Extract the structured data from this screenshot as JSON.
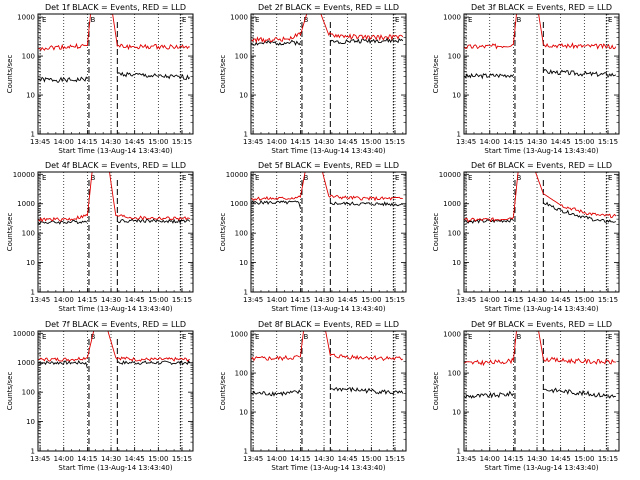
{
  "colors": {
    "events": "#000000",
    "lld": "#e00000",
    "axis": "#000000"
  },
  "chart_data": [
    {
      "type": "line",
      "title": "Det 1f BLACK = Events, RED = LLD",
      "xlabel": "Start Time (13-Aug-14 13:43:40)",
      "ylabel": "Counts/sec",
      "xlim": [
        "13:43:40",
        "15:22"
      ],
      "ylim": [
        1,
        1200
      ],
      "yscale": "log",
      "x_ticks": [
        "13:45",
        "14:00",
        "14:15",
        "14:30",
        "14:45",
        "15:00",
        "15:15"
      ],
      "y_ticks": [
        "1",
        "10",
        "100",
        "1000"
      ],
      "interval_markers": [
        "13:45",
        "14:16",
        "14:34",
        "15:14"
      ],
      "segment_labels": [
        "E",
        "B",
        "E"
      ],
      "series": [
        {
          "name": "Events",
          "color": "#000000",
          "x": [
            "13:44",
            "14:05",
            "14:15",
            "14:16",
            "14:34",
            "14:45",
            "15:00",
            "15:20"
          ],
          "y": [
            25,
            24,
            26,
            null,
            35,
            33,
            30,
            28
          ]
        },
        {
          "name": "LLD",
          "color": "#e00000",
          "x": [
            "13:44",
            "14:05",
            "14:15",
            "14:17",
            "14:19",
            "14:31",
            "14:34",
            "14:45",
            "15:00",
            "15:20"
          ],
          "y": [
            160,
            175,
            185,
            1200,
            1200,
            1200,
            180,
            170,
            175,
            170
          ]
        }
      ]
    },
    {
      "type": "line",
      "title": "Det 2f BLACK = Events, RED = LLD",
      "xlabel": "Start Time (13-Aug-14 13:43:40)",
      "ylabel": "Counts/sec",
      "xlim": [
        "13:43:40",
        "15:22"
      ],
      "ylim": [
        1,
        1200
      ],
      "yscale": "log",
      "x_ticks": [
        "13:45",
        "14:00",
        "14:15",
        "14:30",
        "14:45",
        "15:00",
        "15:15"
      ],
      "y_ticks": [
        "1",
        "10",
        "100",
        "1000"
      ],
      "interval_markers": [
        "13:45",
        "14:16",
        "14:34",
        "15:14"
      ],
      "segment_labels": [
        "E",
        "B",
        "E"
      ],
      "series": [
        {
          "name": "Events",
          "color": "#000000",
          "x": [
            "13:44",
            "14:05",
            "14:15",
            "14:16",
            "14:34",
            "14:45",
            "15:00",
            "15:20"
          ],
          "y": [
            210,
            220,
            225,
            null,
            230,
            240,
            250,
            245
          ]
        },
        {
          "name": "LLD",
          "color": "#e00000",
          "x": [
            "13:44",
            "14:05",
            "14:15",
            "14:19",
            "14:22",
            "14:28",
            "14:33",
            "14:45",
            "15:00",
            "15:20"
          ],
          "y": [
            260,
            270,
            350,
            1200,
            1200,
            1200,
            350,
            320,
            300,
            310
          ]
        }
      ]
    },
    {
      "type": "line",
      "title": "Det 3f BLACK = Events, RED = LLD",
      "xlabel": "Start Time (13-Aug-14 13:43:40)",
      "ylabel": "Counts/sec",
      "xlim": [
        "13:43:40",
        "15:22"
      ],
      "ylim": [
        1,
        1200
      ],
      "yscale": "log",
      "x_ticks": [
        "13:45",
        "14:00",
        "14:15",
        "14:30",
        "14:45",
        "15:00",
        "15:15"
      ],
      "y_ticks": [
        "1",
        "10",
        "100",
        "1000"
      ],
      "interval_markers": [
        "13:45",
        "14:16",
        "14:34",
        "15:14"
      ],
      "segment_labels": [
        "E",
        "B",
        "E"
      ],
      "series": [
        {
          "name": "Events",
          "color": "#000000",
          "x": [
            "13:44",
            "14:05",
            "14:15",
            "14:16",
            "14:34",
            "14:45",
            "15:00",
            "15:20"
          ],
          "y": [
            30,
            32,
            33,
            null,
            40,
            38,
            35,
            33
          ]
        },
        {
          "name": "LLD",
          "color": "#e00000",
          "x": [
            "13:44",
            "14:05",
            "14:15",
            "14:17",
            "14:19",
            "14:31",
            "14:34",
            "14:45",
            "15:00",
            "15:20"
          ],
          "y": [
            170,
            180,
            200,
            1200,
            1200,
            1200,
            200,
            185,
            180,
            175
          ]
        }
      ]
    },
    {
      "type": "line",
      "title": "Det 4f BLACK = Events, RED = LLD",
      "xlabel": "Start Time (13-Aug-14 13:43:40)",
      "ylabel": "Counts/sec",
      "xlim": [
        "13:43:40",
        "15:22"
      ],
      "ylim": [
        1,
        12000
      ],
      "yscale": "log",
      "x_ticks": [
        "13:45",
        "14:00",
        "14:15",
        "14:30",
        "14:45",
        "15:00",
        "15:15"
      ],
      "y_ticks": [
        "1",
        "10",
        "100",
        "1000",
        "10000"
      ],
      "interval_markers": [
        "13:45",
        "14:16",
        "14:34",
        "15:14"
      ],
      "segment_labels": [
        "E",
        "B",
        "E"
      ],
      "series": [
        {
          "name": "Events",
          "color": "#000000",
          "x": [
            "13:44",
            "14:05",
            "14:15",
            "14:16",
            "14:34",
            "14:45",
            "15:00",
            "15:20"
          ],
          "y": [
            230,
            240,
            250,
            null,
            260,
            270,
            260,
            250
          ]
        },
        {
          "name": "LLD",
          "color": "#e00000",
          "x": [
            "13:44",
            "14:05",
            "14:15",
            "14:18",
            "14:21",
            "14:29",
            "14:33",
            "14:45",
            "15:00",
            "15:20"
          ],
          "y": [
            290,
            300,
            400,
            12000,
            12000,
            12000,
            400,
            330,
            320,
            310
          ]
        }
      ]
    },
    {
      "type": "line",
      "title": "Det 5f BLACK = Events, RED = LLD",
      "xlabel": "Start Time (13-Aug-14 13:43:40)",
      "ylabel": "Counts/sec",
      "xlim": [
        "13:43:40",
        "15:22"
      ],
      "ylim": [
        1,
        12000
      ],
      "yscale": "log",
      "x_ticks": [
        "13:45",
        "14:00",
        "14:15",
        "14:30",
        "14:45",
        "15:00",
        "15:15"
      ],
      "y_ticks": [
        "1",
        "10",
        "100",
        "1000",
        "10000"
      ],
      "interval_markers": [
        "13:45",
        "14:16",
        "14:34",
        "15:14"
      ],
      "segment_labels": [
        "E",
        "B",
        "E"
      ],
      "series": [
        {
          "name": "Events",
          "color": "#000000",
          "x": [
            "13:44",
            "14:05",
            "14:14",
            "14:15",
            "14:16",
            "14:34",
            "14:45",
            "15:00",
            "15:20"
          ],
          "y": [
            1100,
            1100,
            1100,
            700,
            null,
            1050,
            1000,
            1000,
            950
          ]
        },
        {
          "name": "LLD",
          "color": "#e00000",
          "x": [
            "13:44",
            "14:05",
            "14:15",
            "14:18",
            "14:21",
            "14:29",
            "14:33",
            "14:45",
            "15:00",
            "15:20"
          ],
          "y": [
            1500,
            1500,
            1700,
            12000,
            12000,
            12000,
            1800,
            1600,
            1500,
            1500
          ]
        }
      ]
    },
    {
      "type": "line",
      "title": "Det 6f BLACK = Events, RED = LLD",
      "xlabel": "Start Time (13-Aug-14 13:43:40)",
      "ylabel": "Counts/sec",
      "xlim": [
        "13:43:40",
        "15:22"
      ],
      "ylim": [
        1,
        12000
      ],
      "yscale": "log",
      "x_ticks": [
        "13:45",
        "14:00",
        "14:15",
        "14:30",
        "14:45",
        "15:00",
        "15:15"
      ],
      "y_ticks": [
        "1",
        "10",
        "100",
        "1000",
        "10000"
      ],
      "interval_markers": [
        "13:45",
        "14:16",
        "14:34",
        "15:14"
      ],
      "segment_labels": [
        "E",
        "B",
        "E"
      ],
      "series": [
        {
          "name": "Events",
          "color": "#000000",
          "x": [
            "13:44",
            "14:05",
            "14:15",
            "14:16",
            "14:34",
            "14:45",
            "15:00",
            "15:10",
            "15:20"
          ],
          "y": [
            250,
            260,
            280,
            null,
            1100,
            600,
            350,
            260,
            250
          ]
        },
        {
          "name": "LLD",
          "color": "#e00000",
          "x": [
            "13:44",
            "14:05",
            "14:15",
            "14:18",
            "14:22",
            "14:29",
            "14:34",
            "14:45",
            "15:00",
            "15:10",
            "15:20"
          ],
          "y": [
            280,
            290,
            350,
            12000,
            12000,
            12000,
            2200,
            900,
            500,
            400,
            380
          ]
        }
      ]
    },
    {
      "type": "line",
      "title": "Det 7f BLACK = Events, RED = LLD",
      "xlabel": "Start Time (13-Aug-14 13:43:40)",
      "ylabel": "Counts/sec",
      "xlim": [
        "13:43:40",
        "15:22"
      ],
      "ylim": [
        1,
        12000
      ],
      "yscale": "log",
      "x_ticks": [
        "13:45",
        "14:00",
        "14:15",
        "14:30",
        "14:45",
        "15:00",
        "15:15"
      ],
      "y_ticks": [
        "1",
        "10",
        "100",
        "1000",
        "10000"
      ],
      "interval_markers": [
        "13:45",
        "14:16",
        "14:34",
        "15:14"
      ],
      "segment_labels": [
        "E",
        "B",
        "E"
      ],
      "series": [
        {
          "name": "Events",
          "color": "#000000",
          "x": [
            "13:44",
            "14:05",
            "14:14",
            "14:15",
            "14:16",
            "14:34",
            "14:45",
            "15:00",
            "15:20"
          ],
          "y": [
            1000,
            1000,
            1000,
            650,
            null,
            1000,
            1000,
            1000,
            1000
          ]
        },
        {
          "name": "LLD",
          "color": "#e00000",
          "x": [
            "13:44",
            "14:05",
            "14:15",
            "14:19",
            "14:23",
            "14:28",
            "14:33",
            "14:45",
            "15:00",
            "15:20"
          ],
          "y": [
            1300,
            1300,
            1500,
            12000,
            12000,
            12000,
            1500,
            1300,
            1300,
            1300
          ]
        }
      ]
    },
    {
      "type": "line",
      "title": "Det 8f BLACK = Events, RED = LLD",
      "xlabel": "Start Time (13-Aug-14 13:43:40)",
      "ylabel": "Counts/sec",
      "xlim": [
        "13:43:40",
        "15:22"
      ],
      "ylim": [
        1,
        1200
      ],
      "yscale": "log",
      "x_ticks": [
        "13:45",
        "14:00",
        "14:15",
        "14:30",
        "14:45",
        "15:00",
        "15:15"
      ],
      "y_ticks": [
        "1",
        "10",
        "100",
        "1000"
      ],
      "interval_markers": [
        "13:45",
        "14:16",
        "14:34",
        "15:14"
      ],
      "segment_labels": [
        "E",
        "B",
        "E"
      ],
      "series": [
        {
          "name": "Events",
          "color": "#000000",
          "x": [
            "13:44",
            "14:05",
            "14:15",
            "14:16",
            "14:34",
            "14:45",
            "15:00",
            "15:20"
          ],
          "y": [
            30,
            30,
            32,
            null,
            40,
            38,
            35,
            30
          ]
        },
        {
          "name": "LLD",
          "color": "#e00000",
          "x": [
            "13:44",
            "14:05",
            "14:15",
            "14:17",
            "14:19",
            "14:31",
            "14:34",
            "14:45",
            "15:00",
            "15:20"
          ],
          "y": [
            230,
            240,
            260,
            1200,
            1200,
            1200,
            280,
            260,
            250,
            230
          ]
        }
      ]
    },
    {
      "type": "line",
      "title": "Det 9f BLACK = Events, RED = LLD",
      "xlabel": "Start Time (13-Aug-14 13:43:40)",
      "ylabel": "Counts/sec",
      "xlim": [
        "13:43:40",
        "15:22"
      ],
      "ylim": [
        1,
        1200
      ],
      "yscale": "log",
      "x_ticks": [
        "13:45",
        "14:00",
        "14:15",
        "14:30",
        "14:45",
        "15:00",
        "15:15"
      ],
      "y_ticks": [
        "1",
        "10",
        "100",
        "1000"
      ],
      "interval_markers": [
        "13:45",
        "14:16",
        "14:34",
        "15:14"
      ],
      "segment_labels": [
        "E",
        "B",
        "E"
      ],
      "series": [
        {
          "name": "Events",
          "color": "#000000",
          "x": [
            "13:44",
            "14:05",
            "14:15",
            "14:16",
            "14:34",
            "14:45",
            "15:00",
            "15:20"
          ],
          "y": [
            25,
            27,
            30,
            null,
            38,
            35,
            30,
            25
          ]
        },
        {
          "name": "LLD",
          "color": "#e00000",
          "x": [
            "13:44",
            "14:05",
            "14:15",
            "14:17",
            "14:19",
            "14:31",
            "14:34",
            "14:45",
            "15:00",
            "15:20"
          ],
          "y": [
            180,
            190,
            210,
            1200,
            1200,
            1200,
            230,
            210,
            200,
            190
          ]
        }
      ]
    }
  ]
}
